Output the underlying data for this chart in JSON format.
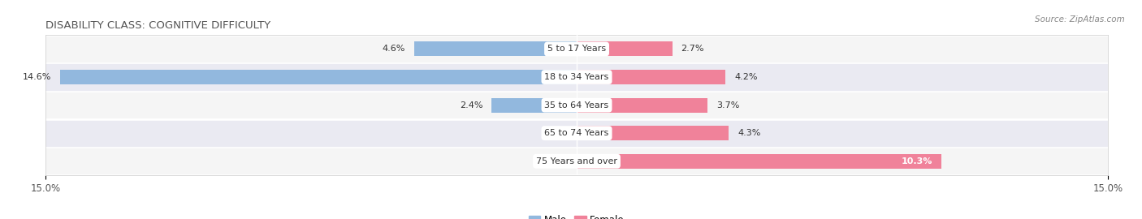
{
  "title": "DISABILITY CLASS: COGNITIVE DIFFICULTY",
  "source": "Source: ZipAtlas.com",
  "categories": [
    "5 to 17 Years",
    "18 to 34 Years",
    "35 to 64 Years",
    "65 to 74 Years",
    "75 Years and over"
  ],
  "male_values": [
    4.6,
    14.6,
    2.4,
    0.0,
    0.0
  ],
  "female_values": [
    2.7,
    4.2,
    3.7,
    4.3,
    10.3
  ],
  "x_max": 15.0,
  "male_color": "#92b8de",
  "female_color": "#f0829a",
  "row_bg_odd": "#f5f5f5",
  "row_bg_even": "#eaeaf2",
  "label_fontsize": 8.0,
  "title_fontsize": 9.5,
  "axis_label_fontsize": 8.5,
  "legend_fontsize": 8.5,
  "bar_height": 0.52
}
